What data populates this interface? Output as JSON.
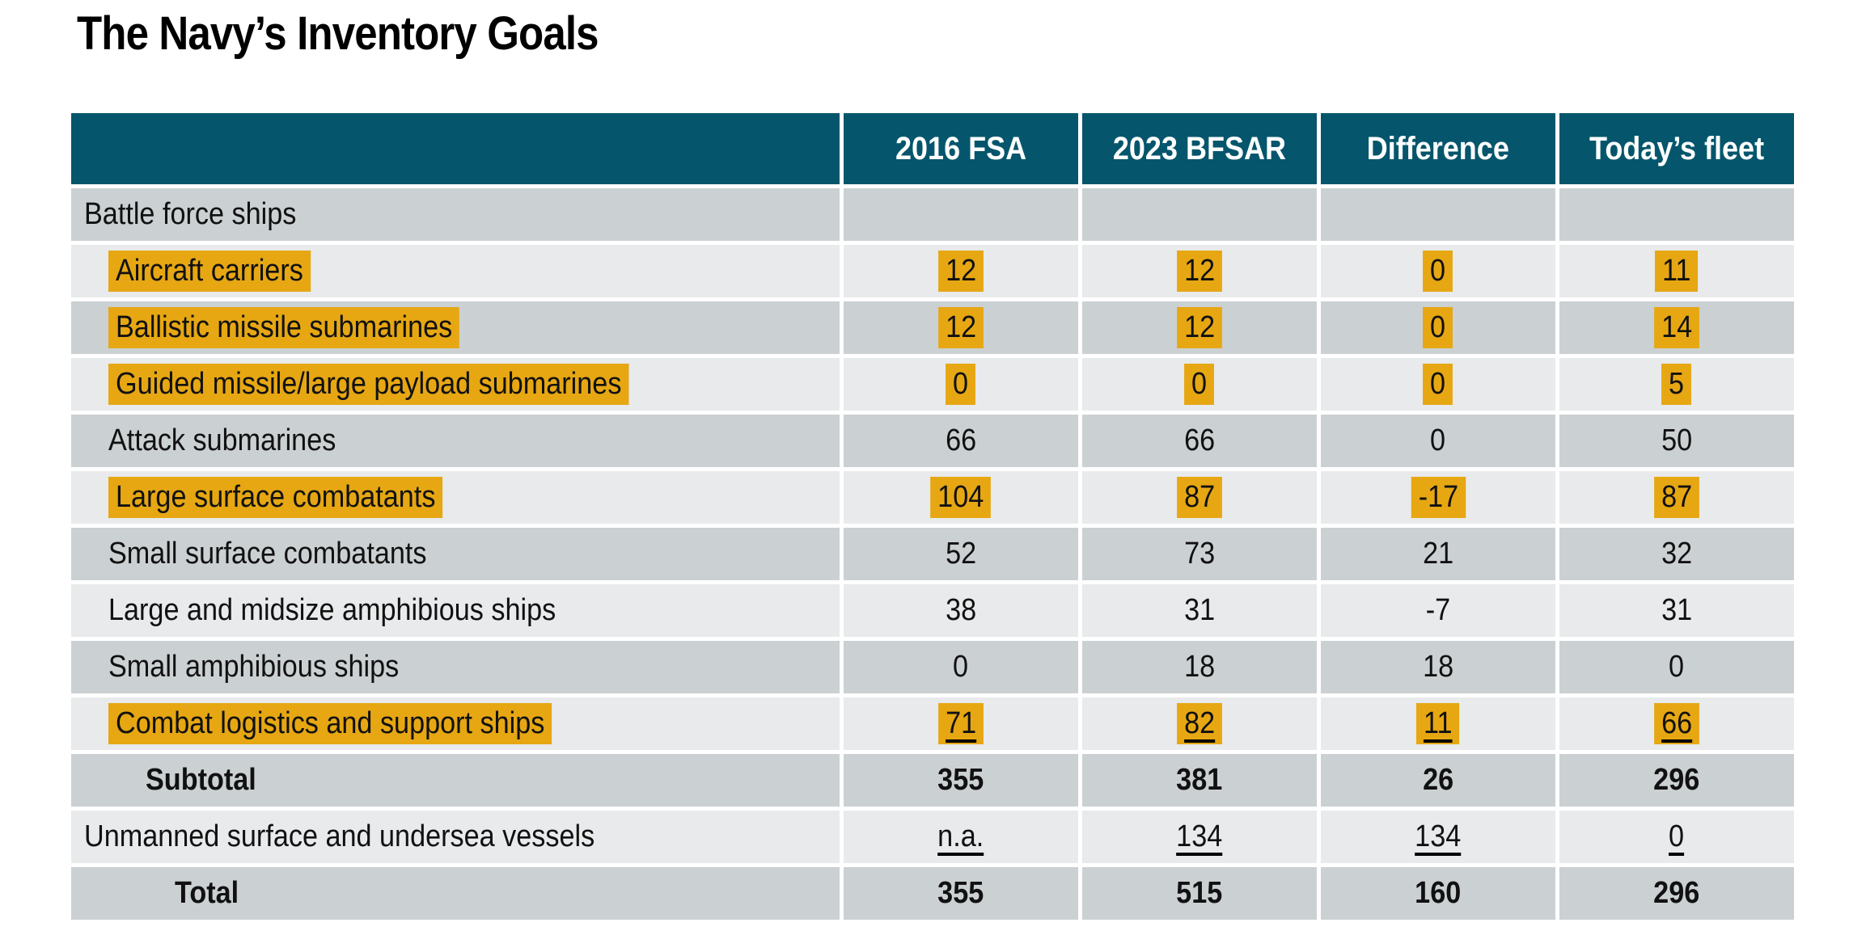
{
  "page": {
    "title": "The Navy’s Inventory Goals"
  },
  "colors": {
    "header_bg": "#05566C",
    "header_text": "#FFFFFF",
    "row_dark": "#CBD0D2",
    "row_light": "#E8EAEB",
    "highlight": "#E6A713",
    "text": "#111111"
  },
  "table": {
    "columns": [
      "",
      "2016 FSA",
      "2023 BFSAR",
      "Difference",
      "Today’s fleet"
    ],
    "rows": [
      {
        "label": "Battle force ships",
        "values": [
          "",
          "",
          "",
          ""
        ]
      },
      {
        "label": "Aircraft carriers",
        "values": [
          "12",
          "12",
          "0",
          "11"
        ]
      },
      {
        "label": "Ballistic missile submarines",
        "values": [
          "12",
          "12",
          "0",
          "14"
        ]
      },
      {
        "label": "Guided missile/large payload submarines",
        "values": [
          "0",
          "0",
          "0",
          "5"
        ]
      },
      {
        "label": "Attack submarines",
        "values": [
          "66",
          "66",
          "0",
          "50"
        ]
      },
      {
        "label": "Large surface combatants",
        "values": [
          "104",
          "87",
          "-17",
          "87"
        ]
      },
      {
        "label": "Small surface combatants",
        "values": [
          "52",
          "73",
          "21",
          "32"
        ]
      },
      {
        "label": "Large and midsize amphibious ships",
        "values": [
          "38",
          "31",
          "-7",
          "31"
        ]
      },
      {
        "label": "Small amphibious ships",
        "values": [
          "0",
          "18",
          "18",
          "0"
        ]
      },
      {
        "label": "Combat logistics and support ships",
        "values": [
          "71",
          "82",
          "11",
          "66"
        ]
      },
      {
        "label": "Subtotal",
        "values": [
          "355",
          "381",
          "26",
          "296"
        ]
      },
      {
        "label": "Unmanned surface and undersea vessels",
        "values": [
          "n.a.",
          "134",
          "134",
          "0"
        ]
      },
      {
        "label": "Total",
        "values": [
          "355",
          "515",
          "160",
          "296"
        ]
      }
    ]
  }
}
